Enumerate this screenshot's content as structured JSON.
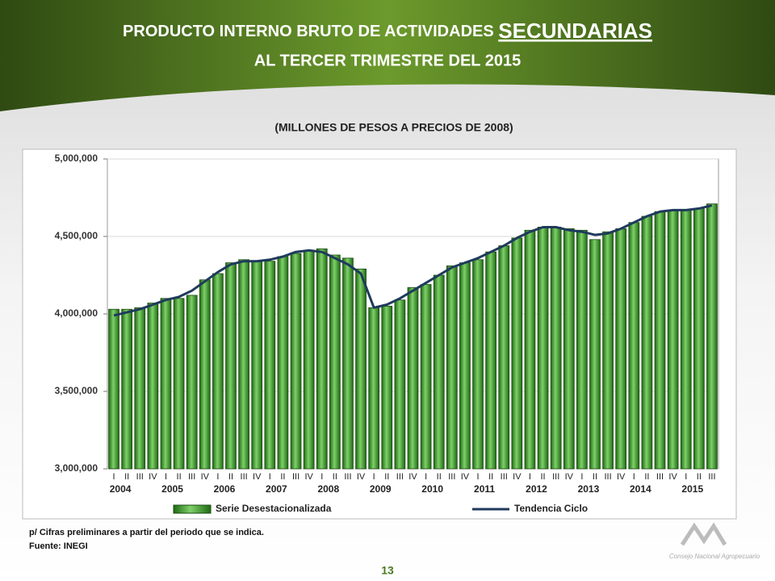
{
  "header": {
    "title_line1": "PRODUCTO INTERNO BRUTO DE  ACTIVIDADES",
    "title_emphasis": "SECUNDARIAS",
    "title_line2": "AL TERCER TRIMESTRE DEL 2015"
  },
  "chart_data": {
    "type": "bar",
    "subtitle": "(MILLONES DE PESOS A PRECIOS DE 2008)",
    "categories": [
      "I",
      "II",
      "III",
      "IV",
      "I",
      "II",
      "III",
      "IV",
      "I",
      "II",
      "III",
      "IV",
      "I",
      "II",
      "III",
      "IV",
      "I",
      "II",
      "III",
      "IV",
      "I",
      "II",
      "III",
      "IV",
      "I",
      "II",
      "III",
      "IV",
      "I",
      "II",
      "III",
      "IV",
      "I",
      "II",
      "III",
      "IV",
      "I",
      "II",
      "III",
      "IV",
      "I",
      "II",
      "III",
      "IV",
      "I",
      "II",
      "III"
    ],
    "year_labels": [
      "2004",
      "2005",
      "2006",
      "2007",
      "2008",
      "2009",
      "2010",
      "2011",
      "2012",
      "2013",
      "2014",
      "2015"
    ],
    "series": [
      {
        "name": "Serie Desestacionalizada",
        "type": "bar",
        "color": "#3f9c2c",
        "values": [
          4030000,
          4030000,
          4040000,
          4070000,
          4100000,
          4100000,
          4120000,
          4220000,
          4260000,
          4330000,
          4350000,
          4340000,
          4340000,
          4370000,
          4390000,
          4410000,
          4420000,
          4380000,
          4360000,
          4290000,
          4040000,
          4050000,
          4090000,
          4170000,
          4190000,
          4250000,
          4310000,
          4330000,
          4350000,
          4400000,
          4440000,
          4490000,
          4540000,
          4560000,
          4560000,
          4550000,
          4540000,
          4480000,
          4530000,
          4550000,
          4590000,
          4630000,
          4660000,
          4670000,
          4670000,
          4680000,
          4710000
        ]
      },
      {
        "name": "Tendencia Ciclo",
        "type": "line",
        "color": "#1f3a5c",
        "values": [
          3990000,
          4010000,
          4030000,
          4060000,
          4090000,
          4110000,
          4150000,
          4210000,
          4270000,
          4320000,
          4340000,
          4340000,
          4350000,
          4370000,
          4400000,
          4410000,
          4400000,
          4360000,
          4320000,
          4260000,
          4040000,
          4060000,
          4100000,
          4150000,
          4200000,
          4250000,
          4300000,
          4330000,
          4360000,
          4400000,
          4440000,
          4490000,
          4530000,
          4560000,
          4560000,
          4540000,
          4530000,
          4510000,
          4520000,
          4550000,
          4590000,
          4630000,
          4660000,
          4670000,
          4670000,
          4680000,
          4700000
        ]
      }
    ],
    "ylim": [
      3000000,
      5000000
    ],
    "yticks": [
      {
        "value": 3000000,
        "label": "3,000,000"
      },
      {
        "value": 3500000,
        "label": "3,500,000"
      },
      {
        "value": 4000000,
        "label": "4,000,000"
      },
      {
        "value": 4500000,
        "label": "4,500,000"
      },
      {
        "value": 5000000,
        "label": "5,000,000"
      }
    ],
    "grid": true
  },
  "footer": {
    "note": "p/ Cifras preliminares a partir del periodo que se indica.",
    "source": "Fuente: INEGI",
    "page": "13",
    "logo": "Consejo Nacional Agropecuario"
  }
}
